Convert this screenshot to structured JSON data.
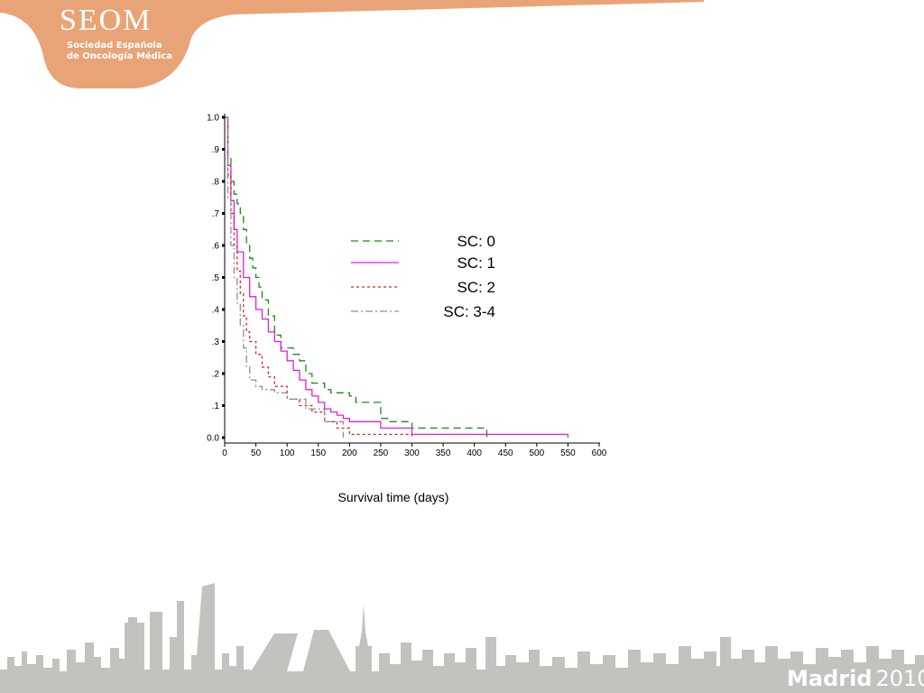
{
  "logo": {
    "title": "SEOM",
    "subtitle_line1": "Sociedad Española",
    "subtitle_line2": "de Oncología Médica"
  },
  "footer": {
    "city": "Madrid",
    "year": "2010"
  },
  "colors": {
    "brand_orange": "#e8a476",
    "skyline_gray": "#c4c2be"
  },
  "chart_data": {
    "type": "line",
    "step": true,
    "title": "",
    "xlabel": "Survival time (days)",
    "ylabel": "",
    "xlim": [
      0,
      600
    ],
    "ylim": [
      0,
      1
    ],
    "x_ticks": [
      0,
      50,
      100,
      150,
      200,
      250,
      300,
      350,
      400,
      450,
      500,
      550,
      600
    ],
    "x_tick_labels": [
      "0",
      "50",
      "100",
      "150",
      "200",
      "250",
      "300",
      "350",
      "400",
      "450",
      "500",
      "550",
      "600"
    ],
    "y_ticks": [
      0,
      0.1,
      0.2,
      0.3,
      0.4,
      0.5,
      0.6,
      0.7,
      0.8,
      0.9,
      1.0
    ],
    "y_tick_labels": [
      "0.0",
      ".1",
      ".2",
      ".3",
      ".4",
      ".5",
      ".6",
      ".7",
      ".8",
      ".9",
      "1.0"
    ],
    "grid": false,
    "legend_position": "center-right",
    "series": [
      {
        "name": "SC: 0",
        "color": "#1a8a1a",
        "dash": "dashed",
        "x": [
          0,
          5,
          10,
          15,
          20,
          25,
          30,
          35,
          40,
          45,
          50,
          55,
          60,
          70,
          80,
          90,
          100,
          110,
          120,
          130,
          140,
          160,
          170,
          200,
          210,
          250,
          265,
          300,
          420
        ],
        "y": [
          1.0,
          0.88,
          0.8,
          0.76,
          0.73,
          0.7,
          0.65,
          0.6,
          0.56,
          0.53,
          0.5,
          0.47,
          0.43,
          0.38,
          0.32,
          0.28,
          0.28,
          0.26,
          0.24,
          0.2,
          0.17,
          0.15,
          0.14,
          0.13,
          0.11,
          0.06,
          0.05,
          0.03,
          0.0
        ]
      },
      {
        "name": "SC: 1",
        "color": "#e020e0",
        "dash": "solid",
        "x": [
          0,
          5,
          10,
          15,
          20,
          30,
          40,
          50,
          60,
          70,
          80,
          90,
          100,
          110,
          120,
          130,
          140,
          150,
          160,
          170,
          180,
          190,
          200,
          250,
          300,
          550
        ],
        "y": [
          1.0,
          0.85,
          0.74,
          0.65,
          0.58,
          0.5,
          0.44,
          0.4,
          0.37,
          0.33,
          0.3,
          0.27,
          0.24,
          0.21,
          0.18,
          0.15,
          0.13,
          0.11,
          0.09,
          0.08,
          0.07,
          0.06,
          0.05,
          0.03,
          0.01,
          0.0
        ]
      },
      {
        "name": "SC: 2",
        "color": "#e02020",
        "dash": "dotted",
        "x": [
          0,
          5,
          10,
          15,
          20,
          25,
          30,
          35,
          40,
          50,
          60,
          70,
          80,
          100,
          120,
          140,
          160,
          180,
          200,
          300
        ],
        "y": [
          1.0,
          0.82,
          0.7,
          0.6,
          0.52,
          0.45,
          0.38,
          0.33,
          0.3,
          0.26,
          0.22,
          0.19,
          0.16,
          0.12,
          0.1,
          0.08,
          0.05,
          0.03,
          0.01,
          0.0
        ]
      },
      {
        "name": "SC: 3-4",
        "color": "#909090",
        "dash": "dashdot",
        "x": [
          0,
          5,
          10,
          15,
          20,
          25,
          30,
          35,
          40,
          50,
          60,
          80,
          100,
          130,
          160,
          190
        ],
        "y": [
          1.0,
          0.75,
          0.6,
          0.5,
          0.42,
          0.35,
          0.28,
          0.22,
          0.18,
          0.16,
          0.15,
          0.14,
          0.12,
          0.09,
          0.05,
          0.0
        ]
      }
    ]
  }
}
